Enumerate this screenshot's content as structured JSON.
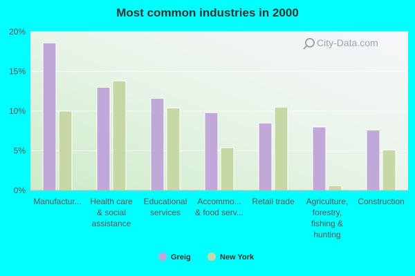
{
  "chart_data": {
    "type": "bar",
    "title": "Most common industries in 2000",
    "categories": [
      [
        "Manufactur..."
      ],
      [
        "Health care",
        "& social",
        "assistance"
      ],
      [
        "Educational",
        "services"
      ],
      [
        "Accommo...",
        "& food serv..."
      ],
      [
        "Retail trade"
      ],
      [
        "Agriculture,",
        "forestry,",
        "fishing &",
        "hunting"
      ],
      [
        "Construction"
      ]
    ],
    "series": [
      {
        "name": "Greig",
        "color": "#c0a8d8",
        "values": [
          18.6,
          13.0,
          11.6,
          9.8,
          8.5,
          8.0,
          7.6
        ]
      },
      {
        "name": "New York",
        "color": "#c5d8a6",
        "values": [
          10.0,
          13.8,
          10.4,
          5.4,
          10.5,
          0.6,
          5.1
        ]
      }
    ],
    "ylim": [
      0,
      20
    ],
    "yticks": [
      0,
      5,
      10,
      15,
      20
    ],
    "ytick_labels": [
      "0%",
      "5%",
      "10%",
      "15%",
      "20%"
    ],
    "grid": true,
    "legend_position": "bottom-center"
  },
  "watermark": "City-Data.com"
}
